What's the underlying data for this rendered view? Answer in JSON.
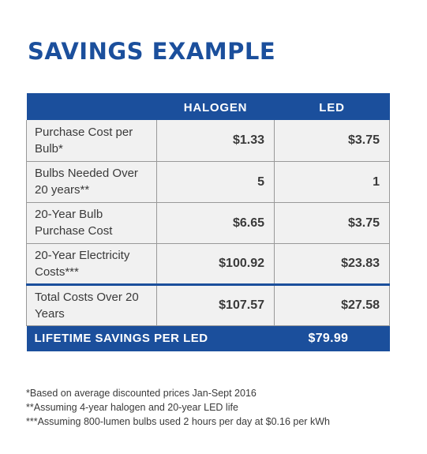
{
  "title": "SAVINGS EXAMPLE",
  "table": {
    "headers": [
      "",
      "HALOGEN",
      "LED"
    ],
    "rows": [
      {
        "label": "Purchase Cost per Bulb*",
        "halogen": "$1.33",
        "led": "$3.75"
      },
      {
        "label": "Bulbs Needed Over 20 years**",
        "halogen": "5",
        "led": "1"
      },
      {
        "label": "20-Year Bulb Purchase Cost",
        "halogen": "$6.65",
        "led": "$3.75"
      },
      {
        "label": "20-Year Electricity Costs***",
        "halogen": "$100.92",
        "led": "$23.83"
      },
      {
        "label": "Total Costs Over 20 Years",
        "halogen": "$107.57",
        "led": "$27.58"
      }
    ],
    "savings": {
      "label": "LIFETIME SAVINGS PER LED",
      "value": "$79.99"
    }
  },
  "footnotes": [
    "*Based on average discounted prices Jan-Sept 2016",
    "**Assuming 4-year halogen and 20-year LED life",
    "***Assuming 800-lumen bulbs used 2 hours per day at $0.16 per kWh"
  ],
  "colors": {
    "accent": "#1b4f9c",
    "cell_bg": "#f1f1f1",
    "text": "#3a3a3a"
  }
}
